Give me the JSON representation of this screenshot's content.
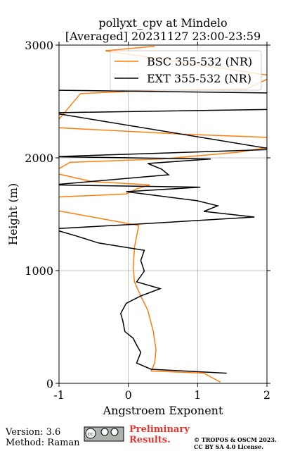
{
  "chart_data": {
    "type": "line",
    "title": [
      "pollyxt_cpv at Mindelo",
      "[Averaged] 20231127 23:00-23:59"
    ],
    "x_label": "Angstroem Exponent",
    "y_label": "Height (m)",
    "xlim": [
      -1,
      2
    ],
    "xticks": [
      -1,
      0,
      1,
      2
    ],
    "ylim": [
      0,
      3000
    ],
    "yticks": [
      0,
      1000,
      2000,
      3000
    ],
    "grid": true,
    "legend": "upper right",
    "series": [
      {
        "name": "BSC 355-532 (NR)",
        "color": "#ff7f0e",
        "y": [
          10,
          90,
          110,
          180,
          300,
          460,
          650,
          775,
          900,
          1025,
          1210,
          1400,
          1500,
          1540,
          1650,
          1680,
          1725,
          1760,
          1790,
          1870,
          1960,
          1990,
          2050,
          2100,
          2180,
          2210,
          2270,
          2570,
          2600,
          2610,
          2725,
          2950,
          2990
        ],
        "values": [
          1.33,
          1.09,
          0.33,
          0.38,
          0.4,
          0.36,
          0.28,
          0.18,
          0.09,
          0.07,
          0.09,
          0.15,
          -0.74,
          -1.1,
          -1.1,
          -0.03,
          0.12,
          0.31,
          -0.53,
          -1.1,
          -0.84,
          0.48,
          1.59,
          2.1,
          2.1,
          0.78,
          -1.1,
          -0.69,
          0.38,
          1.7,
          2.1,
          -0.33,
          0.38
        ]
      },
      {
        "name": "EXT 355-532 (NR)",
        "color": "#000000",
        "y": [
          90,
          125,
          180,
          275,
          340,
          400,
          460,
          555,
          620,
          710,
          775,
          840,
          900,
          995,
          1090,
          1180,
          1245,
          1305,
          1370,
          1410,
          1475,
          1525,
          1575,
          1620,
          1700,
          1740,
          1760,
          1850,
          1900,
          1950,
          1990,
          2010,
          2075,
          2400,
          2430,
          2575,
          2600
        ],
        "values": [
          1.42,
          0.33,
          0.12,
          0.18,
          0.12,
          0.07,
          -0.05,
          -0.08,
          -0.11,
          -0.03,
          0.18,
          0.46,
          0.12,
          0.23,
          0.18,
          0.23,
          -0.43,
          -0.74,
          -1.1,
          0.07,
          1.82,
          1.09,
          1.29,
          0.99,
          -0.03,
          1.04,
          -1.1,
          0.58,
          0.48,
          0.28,
          1.19,
          -1.1,
          2.1,
          -1.1,
          2.1,
          2.1,
          -1.1
        ]
      }
    ]
  },
  "footer": {
    "version": "Version: 3.6",
    "method": "Method: Raman",
    "preliminary": "Preliminary Results.",
    "license": "© TROPOS & OSCM 2023. CC BY SA 4.0 License."
  }
}
